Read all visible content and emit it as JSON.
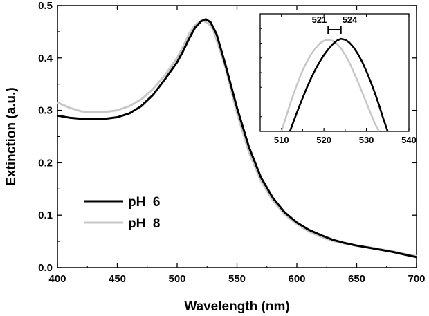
{
  "chart_data": [
    {
      "type": "line",
      "xlabel": "Wavelength (nm)",
      "ylabel": "Extinction (a.u.)",
      "xlim": [
        400,
        700
      ],
      "ylim": [
        0.0,
        0.5
      ],
      "xticks": [
        400,
        450,
        500,
        550,
        600,
        650,
        700
      ],
      "yticks": [
        0.0,
        0.1,
        0.2,
        0.3,
        0.4,
        0.5
      ],
      "legend_position": "lower-left",
      "series": [
        {
          "name": "pH  6",
          "color": "#000000",
          "x": [
            400,
            410,
            420,
            430,
            440,
            450,
            460,
            470,
            480,
            490,
            500,
            505,
            510,
            515,
            520,
            524,
            528,
            533,
            540,
            550,
            560,
            570,
            580,
            590,
            600,
            610,
            620,
            630,
            640,
            650,
            660,
            670,
            680,
            690,
            700
          ],
          "y": [
            0.29,
            0.286,
            0.284,
            0.283,
            0.284,
            0.287,
            0.294,
            0.308,
            0.33,
            0.36,
            0.392,
            0.413,
            0.437,
            0.458,
            0.47,
            0.474,
            0.468,
            0.445,
            0.39,
            0.305,
            0.23,
            0.172,
            0.133,
            0.105,
            0.086,
            0.072,
            0.062,
            0.053,
            0.047,
            0.042,
            0.038,
            0.034,
            0.03,
            0.025,
            0.02
          ]
        },
        {
          "name": "pH  8",
          "color": "#c8c8c8",
          "x": [
            400,
            410,
            420,
            430,
            440,
            450,
            460,
            470,
            480,
            490,
            500,
            505,
            510,
            515,
            521,
            526,
            530,
            540,
            550,
            560,
            570,
            580,
            590,
            600,
            610,
            620,
            630,
            640,
            650,
            660,
            670,
            680,
            690,
            700
          ],
          "y": [
            0.315,
            0.305,
            0.298,
            0.296,
            0.297,
            0.3,
            0.308,
            0.321,
            0.341,
            0.368,
            0.4,
            0.422,
            0.446,
            0.463,
            0.472,
            0.466,
            0.455,
            0.385,
            0.295,
            0.22,
            0.165,
            0.128,
            0.101,
            0.083,
            0.069,
            0.059,
            0.051,
            0.046,
            0.042,
            0.039,
            0.035,
            0.031,
            0.026,
            0.022
          ]
        }
      ]
    },
    {
      "type": "line",
      "title": "inset",
      "xlim": [
        505,
        540
      ],
      "xticks": [
        510,
        520,
        530,
        540
      ],
      "annotations": [
        {
          "label": "521",
          "x": 521
        },
        {
          "label": "524",
          "x": 524
        }
      ],
      "series": [
        {
          "name": "pH  6",
          "color": "#000000",
          "x": [
            512,
            513,
            514,
            515,
            516,
            517,
            518,
            519,
            520,
            521,
            522,
            523,
            524,
            525,
            526,
            527,
            528,
            529,
            530,
            531,
            532,
            533,
            534,
            535
          ],
          "y": [
            0.0,
            0.12,
            0.24,
            0.35,
            0.46,
            0.56,
            0.65,
            0.73,
            0.8,
            0.86,
            0.91,
            0.95,
            0.97,
            0.96,
            0.93,
            0.88,
            0.81,
            0.73,
            0.63,
            0.52,
            0.4,
            0.27,
            0.13,
            0.0
          ]
        },
        {
          "name": "pH  8",
          "color": "#c8c8c8",
          "x": [
            510,
            511,
            512,
            513,
            514,
            515,
            516,
            517,
            518,
            519,
            520,
            521,
            522,
            523,
            524,
            525,
            526,
            527,
            528,
            529,
            530,
            531,
            532,
            533
          ],
          "y": [
            0.0,
            0.14,
            0.28,
            0.41,
            0.53,
            0.64,
            0.73,
            0.81,
            0.87,
            0.92,
            0.95,
            0.96,
            0.95,
            0.92,
            0.87,
            0.8,
            0.72,
            0.62,
            0.52,
            0.41,
            0.3,
            0.19,
            0.08,
            0.0
          ]
        }
      ]
    }
  ]
}
